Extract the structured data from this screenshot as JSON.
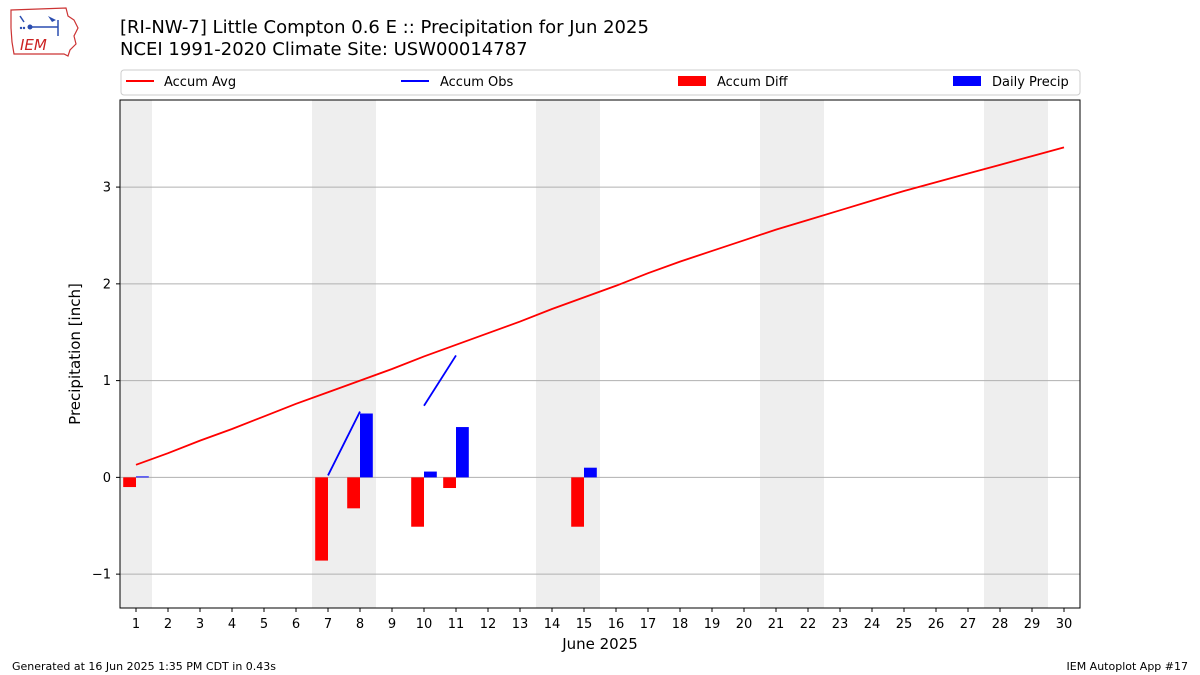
{
  "header": {
    "title_line1": "[RI-NW-7] Little Compton 0.6 E :: Precipitation for Jun 2025",
    "title_line2": "NCEI 1991-2020 Climate Site: USW00014787",
    "logo_text": "IEM"
  },
  "footer": {
    "generated": "Generated at 16 Jun 2025 1:35 PM CDT in 0.43s",
    "app": "IEM Autoplot App #17"
  },
  "colors": {
    "accum_avg": "#ff0000",
    "accum_obs": "#0000ff",
    "accum_diff": "#ff0000",
    "daily_precip": "#0000ff",
    "weekend_shade": "#eeeeee",
    "grid": "#b0b0b0"
  },
  "chart_data": {
    "type": "bar",
    "xlabel": "June 2025",
    "ylabel": "Precipitation [inch]",
    "xlim": [
      0.5,
      30.5
    ],
    "ylim": [
      -1.35,
      3.9
    ],
    "yticks": [
      -1,
      0,
      1,
      2,
      3
    ],
    "ytick_labels": [
      "−1",
      "0",
      "1",
      "2",
      "3"
    ],
    "grid": "horizontal",
    "legend_position": "top",
    "legend": [
      "Accum Avg",
      "Accum Obs",
      "Accum Diff",
      "Daily Precip"
    ],
    "days": [
      1,
      2,
      3,
      4,
      5,
      6,
      7,
      8,
      9,
      10,
      11,
      12,
      13,
      14,
      15,
      16,
      17,
      18,
      19,
      20,
      21,
      22,
      23,
      24,
      25,
      26,
      27,
      28,
      29,
      30
    ],
    "weekend_days": [
      1,
      7,
      8,
      14,
      15,
      21,
      22,
      28,
      29
    ],
    "series": [
      {
        "name": "Accum Avg",
        "kind": "line",
        "x": [
          1,
          2,
          3,
          4,
          5,
          6,
          7,
          8,
          9,
          10,
          11,
          12,
          13,
          14,
          15,
          16,
          17,
          18,
          19,
          20,
          21,
          22,
          23,
          24,
          25,
          26,
          27,
          28,
          29,
          30
        ],
        "values": [
          0.13,
          0.25,
          0.38,
          0.5,
          0.63,
          0.76,
          0.88,
          1.0,
          1.12,
          1.25,
          1.37,
          1.49,
          1.61,
          1.74,
          1.86,
          1.98,
          2.11,
          2.23,
          2.34,
          2.45,
          2.56,
          2.66,
          2.76,
          2.86,
          2.96,
          3.05,
          3.14,
          3.23,
          3.32,
          3.41
        ]
      },
      {
        "name": "Accum Obs",
        "kind": "line",
        "segments": [
          {
            "x": [
              7,
              8
            ],
            "values": [
              0.02,
              0.68
            ]
          },
          {
            "x": [
              10,
              11
            ],
            "values": [
              0.74,
              1.26
            ]
          }
        ]
      },
      {
        "name": "Accum Diff",
        "kind": "bar",
        "x": [
          1,
          7,
          8,
          10,
          11,
          15
        ],
        "values": [
          -0.1,
          -0.86,
          -0.32,
          -0.51,
          -0.11,
          -0.51
        ]
      },
      {
        "name": "Daily Precip",
        "kind": "bar",
        "x": [
          1,
          8,
          10,
          11,
          15
        ],
        "values": [
          0.01,
          0.66,
          0.06,
          0.52,
          0.1
        ]
      }
    ]
  }
}
